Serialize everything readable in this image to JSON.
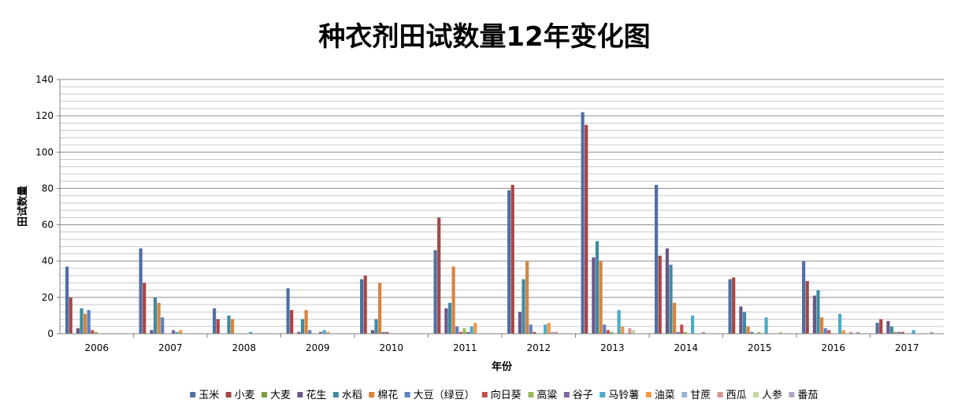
{
  "chart_data": {
    "type": "bar",
    "title": "种衣剂田试数量12年变化图",
    "xlabel": "年份",
    "ylabel": "田试数量",
    "ylim": [
      0,
      140
    ],
    "yticks": [
      0,
      20,
      40,
      60,
      80,
      100,
      120,
      140
    ],
    "grid": true,
    "legend_position": "bottom",
    "categories": [
      "2006",
      "2007",
      "2008",
      "2009",
      "2010",
      "2011",
      "2012",
      "2013",
      "2014",
      "2015",
      "2016",
      "2017"
    ],
    "series": [
      {
        "name": "玉米",
        "color": "#4f6fa5",
        "values": [
          37,
          47,
          14,
          25,
          30,
          46,
          79,
          122,
          82,
          30,
          40,
          6
        ]
      },
      {
        "name": "小麦",
        "color": "#a84545",
        "values": [
          20,
          28,
          8,
          13,
          32,
          64,
          82,
          115,
          43,
          31,
          29,
          8
        ]
      },
      {
        "name": "大麦",
        "color": "#7f9a48",
        "values": [
          0,
          0,
          0,
          0,
          0,
          0,
          0,
          0,
          0,
          0,
          0,
          0
        ]
      },
      {
        "name": "花生",
        "color": "#6b5689",
        "values": [
          3,
          2,
          0,
          1,
          2,
          14,
          12,
          42,
          47,
          15,
          21,
          7
        ]
      },
      {
        "name": "水稻",
        "color": "#3f8aa0",
        "values": [
          14,
          20,
          10,
          8,
          8,
          17,
          30,
          51,
          38,
          12,
          24,
          4
        ]
      },
      {
        "name": "棉花",
        "color": "#d9843d",
        "values": [
          11,
          17,
          8,
          13,
          28,
          37,
          40,
          40,
          17,
          4,
          9,
          1
        ]
      },
      {
        "name": "大豆（绿豆）",
        "color": "#5b82c0",
        "values": [
          13,
          9,
          0,
          2,
          1,
          4,
          5,
          5,
          1,
          1,
          3,
          1
        ]
      },
      {
        "name": "向日葵",
        "color": "#c0504d",
        "values": [
          2,
          0,
          0,
          0,
          1,
          1,
          1,
          2,
          5,
          0,
          2,
          1
        ]
      },
      {
        "name": "高粱",
        "color": "#9bbb59",
        "values": [
          1,
          0,
          0,
          0,
          0,
          3,
          0,
          1,
          1,
          1,
          0,
          0
        ]
      },
      {
        "name": "谷子",
        "color": "#8064a2",
        "values": [
          0,
          2,
          0,
          1,
          0,
          1,
          0,
          0,
          0,
          0,
          0,
          0
        ]
      },
      {
        "name": "马铃薯",
        "color": "#4bacc6",
        "values": [
          0,
          1,
          1,
          2,
          0,
          4,
          5,
          13,
          10,
          9,
          11,
          2
        ]
      },
      {
        "name": "油菜",
        "color": "#f79646",
        "values": [
          0,
          2,
          0,
          1,
          0,
          6,
          6,
          4,
          0,
          0,
          2,
          0
        ]
      },
      {
        "name": "甘蔗",
        "color": "#95b3d7",
        "values": [
          0,
          0,
          0,
          0,
          0,
          0,
          1,
          0,
          0,
          0,
          0,
          0
        ]
      },
      {
        "name": "西瓜",
        "color": "#d99694",
        "values": [
          0,
          0,
          0,
          0,
          0,
          0,
          1,
          3,
          1,
          0,
          1,
          0
        ]
      },
      {
        "name": "人参",
        "color": "#c3d69b",
        "values": [
          0,
          0,
          0,
          0,
          0,
          0,
          0,
          2,
          0,
          1,
          0,
          0
        ]
      },
      {
        "name": "番茄",
        "color": "#b3a2c7",
        "values": [
          0,
          0,
          0,
          0,
          0,
          0,
          0,
          0,
          0,
          0,
          1,
          1
        ]
      }
    ]
  }
}
